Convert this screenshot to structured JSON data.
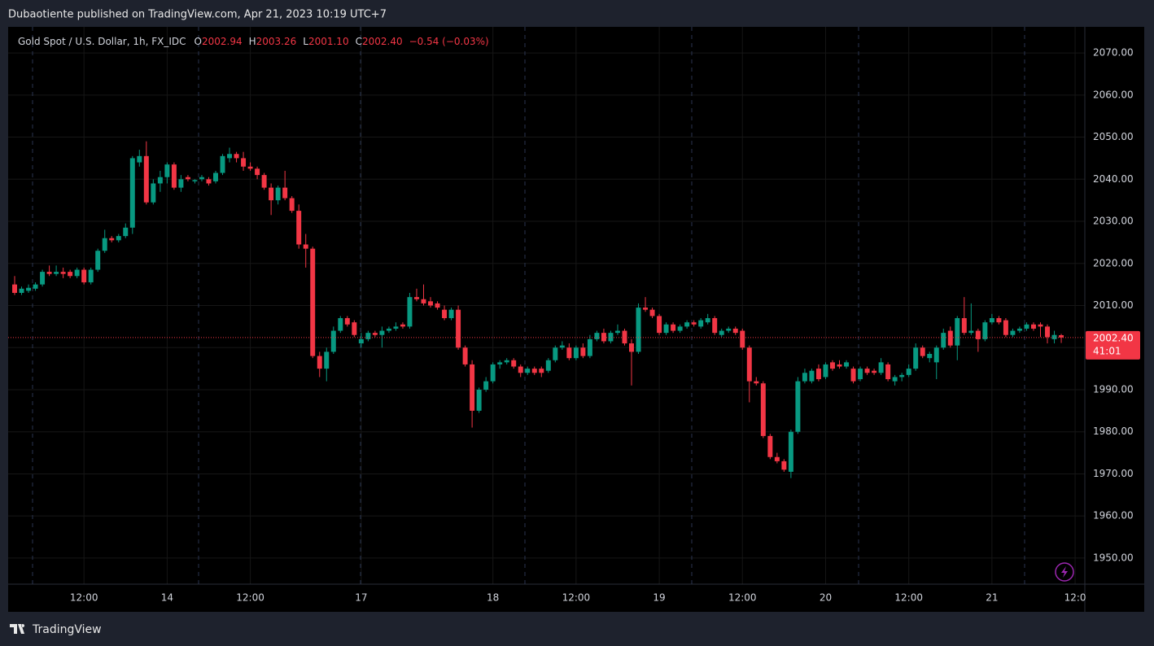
{
  "header": {
    "published": "Dubaotiente published on TradingView.com, Apr 21, 2023 10:19 UTC+7"
  },
  "footer": {
    "brand": "TradingView"
  },
  "chart_data": {
    "type": "candlestick",
    "legend": {
      "symbol": "Gold Spot / U.S. Dollar, 1h, FX_IDC",
      "items": [
        {
          "key": "O",
          "value": "2002.94"
        },
        {
          "key": "H",
          "value": "2003.26"
        },
        {
          "key": "L",
          "value": "2001.10"
        },
        {
          "key": "C",
          "value": "2002.40"
        }
      ],
      "change": "−0.54 (−0.03%)"
    },
    "up_color": "#089981",
    "down_color": "#f23645",
    "grid": true,
    "last_price_label": "2002.40",
    "countdown": "41:01",
    "open": [
      2015,
      2013,
      2013.5,
      2014,
      2015,
      2018,
      2017.5,
      2018,
      2018,
      2017,
      2018.5,
      2015.5,
      2018.5,
      2023,
      2026,
      2025.5,
      2026.5,
      2028.5,
      2044,
      2045.5,
      2034.5,
      2039,
      2040.5,
      2043.5,
      2038,
      2040.5,
      2039.5,
      2040,
      2040,
      2039.5,
      2041.5,
      2045,
      2046,
      2045,
      2043,
      2042.5,
      2041,
      2038,
      2035,
      2038,
      2035.5,
      2032.5,
      2024.5,
      2023.5,
      1998,
      1995,
      1999,
      2004,
      2007,
      2006,
      2001,
      2002,
      2003.5,
      2003,
      2004,
      2004.5,
      2005.5,
      2005,
      2012,
      2011.5,
      2011,
      2010.5,
      2009,
      2007,
      2009,
      2000,
      1996,
      1985,
      1990,
      1992,
      1996,
      1996.5,
      1997,
      1995.5,
      1994,
      1995,
      1995,
      1994.5,
      1997,
      2000,
      2000,
      1997.5,
      2000,
      1998,
      2002,
      2003.5,
      2001.5,
      2003.5,
      2004,
      2001,
      1999,
      2009.5,
      2009,
      2007.5,
      2003.5,
      2005.5,
      2004,
      2005,
      2006,
      2005,
      2006,
      2007,
      2003,
      2004,
      2004.5,
      2004,
      2000,
      1992,
      1991.5,
      1979,
      1974,
      1973,
      1970.5,
      1980,
      1992,
      1992,
      1995,
      1993,
      1996.5,
      1996,
      1995.5,
      1995,
      1992.5,
      1995,
      1994.5,
      1994,
      1996,
      1992,
      1993,
      1993.5,
      1995,
      2000,
      1997.5,
      1996.5,
      2000,
      2004,
      2000.5,
      2007,
      2003.5,
      2004,
      2002,
      2006,
      2007,
      2006.5,
      2003,
      2004,
      2004.5,
      2005.5,
      2005.5,
      2005,
      2002,
      2002.94
    ],
    "high": [
      2017,
      2014.5,
      2015,
      2015.5,
      2018.5,
      2019.5,
      2019.5,
      2019,
      2018.5,
      2019,
      2019,
      2019,
      2023.5,
      2028,
      2026.5,
      2027,
      2029.5,
      2045.5,
      2047,
      2049,
      2040,
      2042,
      2044,
      2044,
      2041,
      2041,
      2040,
      2041,
      2040.5,
      2042,
      2046,
      2047.5,
      2046.5,
      2046.5,
      2044,
      2043,
      2041.5,
      2039,
      2038.5,
      2042,
      2036,
      2034,
      2027,
      2024,
      1999,
      2000,
      2005,
      2007.5,
      2007.5,
      2006.5,
      2003.5,
      2004,
      2004,
      2005,
      2005,
      2006,
      2006,
      2013,
      2014,
      2015,
      2012,
      2011,
      2010,
      2009.5,
      2010,
      2000.5,
      1997,
      1990.5,
      1993,
      1996.5,
      1997,
      1997.5,
      1997.5,
      1996,
      1995.5,
      1995.5,
      1995.5,
      1997.5,
      2000.5,
      2001.5,
      2001,
      2000.5,
      2001,
      2003,
      2004,
      2004.5,
      2004,
      2005.5,
      2004.5,
      2002,
      2010.5,
      2012,
      2009.5,
      2008,
      2006,
      2006,
      2005.5,
      2006.5,
      2006.5,
      2007,
      2008,
      2007.5,
      2004.5,
      2005,
      2005,
      2004.5,
      2000.5,
      1993,
      1992,
      1979.5,
      1975,
      1973.5,
      1980.5,
      1993,
      1995,
      1995,
      1996,
      1996.5,
      1997,
      1997,
      1997,
      1995.5,
      1995.5,
      1995.5,
      1995,
      1997.5,
      1996.5,
      1993.5,
      1994,
      1996,
      2001,
      2000.5,
      1999,
      2000.5,
      2004.5,
      2005,
      2007.5,
      2012,
      2010.5,
      2004.5,
      2006.5,
      2008,
      2007.5,
      2007,
      2004.5,
      2005,
      2006,
      2006,
      2006,
      2005.5,
      2004,
      2003.26
    ],
    "low": [
      2012.5,
      2012.5,
      2013,
      2013.5,
      2014.5,
      2017,
      2017,
      2016.5,
      2016.5,
      2016.5,
      2015,
      2015,
      2018,
      2022.5,
      2025,
      2025,
      2026,
      2027,
      2043,
      2034,
      2034,
      2037,
      2039,
      2037.5,
      2037,
      2039.5,
      2039,
      2039.5,
      2038.5,
      2039,
      2041,
      2044,
      2044,
      2042,
      2042,
      2040,
      2037.5,
      2031.5,
      2034,
      2035,
      2032,
      2023.5,
      2019,
      1997.5,
      1993,
      1992,
      1998.5,
      2003.5,
      2005,
      2002.5,
      2000,
      2001.5,
      2002.5,
      2000,
      2003.5,
      2004,
      2004.5,
      2004.5,
      2011,
      2010,
      2009.5,
      2009,
      2006.5,
      2006.5,
      1999.5,
      1995.5,
      1981,
      1984.5,
      1989.5,
      1991.5,
      1995,
      1996,
      1995,
      1993,
      1993.5,
      1993.5,
      1993,
      1994,
      1996.5,
      1999.5,
      1997,
      1997,
      1997.5,
      1997.5,
      2001.5,
      2001,
      2001,
      2003,
      2000.5,
      1991,
      1998.5,
      2008.5,
      2007,
      2003,
      2003,
      2003.5,
      2003.5,
      2004.5,
      2005,
      2004.5,
      2005.5,
      2003,
      2002.5,
      2003.5,
      2003,
      1999.5,
      1987,
      1991,
      1978.5,
      1973.5,
      1972.5,
      1970.5,
      1969,
      1979.5,
      1991.5,
      1991.5,
      1992,
      1992.5,
      1994.5,
      1995,
      1995,
      1991.5,
      1992,
      1993.5,
      1993.5,
      1993.5,
      1992,
      1991,
      1992,
      1993,
      1994.5,
      1997.5,
      1996.5,
      1992.5,
      1999.5,
      2000,
      1997,
      2003,
      2003,
      1999,
      2001.5,
      2005.5,
      2005.5,
      2002.5,
      2002.5,
      2003.5,
      2004,
      2004,
      2002.5,
      2001,
      2001,
      2001.1
    ],
    "close": [
      2013,
      2014,
      2014.2,
      2015,
      2018,
      2017.5,
      2018,
      2017.5,
      2017,
      2018.5,
      2015.5,
      2018.5,
      2023,
      2026,
      2025.5,
      2026.5,
      2028.5,
      2045,
      2045.5,
      2034.5,
      2039,
      2040.5,
      2043.5,
      2038,
      2040,
      2040,
      2039.8,
      2040.5,
      2039,
      2041.5,
      2045.5,
      2046,
      2045,
      2043,
      2042.5,
      2041,
      2038,
      2035,
      2038,
      2035.5,
      2032.5,
      2024.5,
      2023.5,
      1998,
      1995,
      1999,
      2004,
      2007,
      2005.5,
      2003,
      2002,
      2003.5,
      2003,
      2004,
      2004.5,
      2005,
      2005,
      2012,
      2011.5,
      2010.5,
      2010,
      2009.5,
      2007,
      2009,
      2000,
      1996,
      1985,
      1990,
      1992,
      1996,
      1996.5,
      1997,
      1995.5,
      1994,
      1995,
      1994,
      1994,
      1997,
      2000,
      2000.5,
      1997.5,
      2000,
      1998,
      2002,
      2003.5,
      2001.5,
      2003.5,
      2004,
      2001,
      1999,
      2009.5,
      2009,
      2007.5,
      2003.5,
      2005.5,
      2004,
      2005,
      2006,
      2005.5,
      2006.5,
      2007,
      2003.5,
      2004,
      2004.5,
      2003.5,
      2000,
      1992,
      1991.5,
      1979,
      1974,
      1973,
      1971,
      1980,
      1992,
      1994,
      1994.5,
      1992.5,
      1996,
      1995,
      1995.5,
      1996.5,
      1992,
      1995,
      1994,
      1994,
      1996.5,
      1992.5,
      1993,
      1993.5,
      1995,
      2000,
      1998,
      1998.5,
      2000,
      2003.5,
      2000.5,
      2007,
      2003.5,
      2004,
      2002,
      2006,
      2007,
      2006,
      2003,
      2004,
      2004.5,
      2005.5,
      2004.5,
      2005,
      2002.5,
      2003,
      2002.4
    ],
    "xlim": [
      -0.94,
      154.4
    ],
    "xticks": [
      {
        "value": 10,
        "label": "12:00"
      },
      {
        "value": 22,
        "label": "14"
      },
      {
        "value": 34,
        "label": "12:00"
      },
      {
        "value": 50,
        "label": "17"
      },
      {
        "value": 69,
        "label": "18"
      },
      {
        "value": 81,
        "label": "12:00"
      },
      {
        "value": 93,
        "label": "19"
      },
      {
        "value": 105,
        "label": "12:00"
      },
      {
        "value": 117,
        "label": "20"
      },
      {
        "value": 129,
        "label": "12:00"
      },
      {
        "value": 141,
        "label": "21"
      },
      {
        "value": 153,
        "label": "12:0"
      }
    ],
    "ylim": [
      1943.8,
      2076.2
    ],
    "yticks": [
      {
        "value": 1950,
        "label": "1950.00"
      },
      {
        "value": 1960,
        "label": "1960.00"
      },
      {
        "value": 1970,
        "label": "1970.00"
      },
      {
        "value": 1980,
        "label": "1980.00"
      },
      {
        "value": 1990,
        "label": "1990.00"
      },
      {
        "value": 2000,
        "label": "2000.00"
      },
      {
        "value": 2010,
        "label": "2010.00"
      },
      {
        "value": 2020,
        "label": "2020.00"
      },
      {
        "value": 2030,
        "label": "2030.00"
      },
      {
        "value": 2040,
        "label": "2040.00"
      },
      {
        "value": 2050,
        "label": "2050.00"
      },
      {
        "value": 2060,
        "label": "2060.00"
      },
      {
        "value": 2070,
        "label": "2070.00"
      }
    ]
  }
}
